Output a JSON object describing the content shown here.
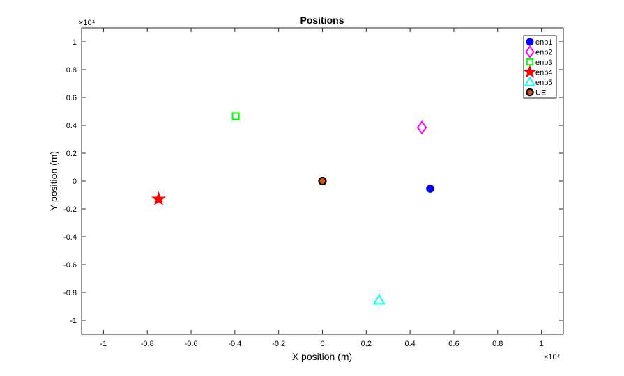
{
  "chart_data": {
    "type": "scatter",
    "title": "Positions",
    "xlabel": "X position (m)",
    "ylabel": "Y position (m)",
    "x_exponent_label": "×10⁴",
    "y_exponent_label": "×10⁴",
    "xlim": [
      -11000,
      11000
    ],
    "ylim": [
      -11000,
      11000
    ],
    "xticks": [
      -10000,
      -8000,
      -6000,
      -4000,
      -2000,
      0,
      2000,
      4000,
      6000,
      8000,
      10000
    ],
    "xtick_labels": [
      "-1",
      "-0.8",
      "-0.6",
      "-0.4",
      "-0.2",
      "0",
      "0.2",
      "0.4",
      "0.6",
      "0.8",
      "1"
    ],
    "yticks": [
      10000,
      8000,
      6000,
      4000,
      2000,
      0,
      -2000,
      -4000,
      -6000,
      -8000,
      -10000
    ],
    "ytick_labels": [
      "1",
      "0.8",
      "0.6",
      "0.4",
      "0.2",
      "0",
      "-0.2",
      "-0.4",
      "-0.6",
      "-0.8",
      "-1"
    ],
    "grid": false,
    "legend_position": "top-right",
    "series": [
      {
        "name": "enb1",
        "x": 4920,
        "y": -550,
        "marker": "circle-filled",
        "color": "#0000FF"
      },
      {
        "name": "enb2",
        "x": 4540,
        "y": 3850,
        "marker": "diamond",
        "color": "#FF00FF"
      },
      {
        "name": "enb3",
        "x": -3960,
        "y": 4650,
        "marker": "square",
        "color": "#00FF00"
      },
      {
        "name": "enb4",
        "x": -7480,
        "y": -1300,
        "marker": "star",
        "color": "#FF0000"
      },
      {
        "name": "enb5",
        "x": 2590,
        "y": -8550,
        "marker": "triangle",
        "color": "#00FFFF"
      },
      {
        "name": "UE",
        "x": 0,
        "y": 0,
        "marker": "circle-edge",
        "color": "#D95319",
        "edge": "#000000"
      }
    ]
  }
}
